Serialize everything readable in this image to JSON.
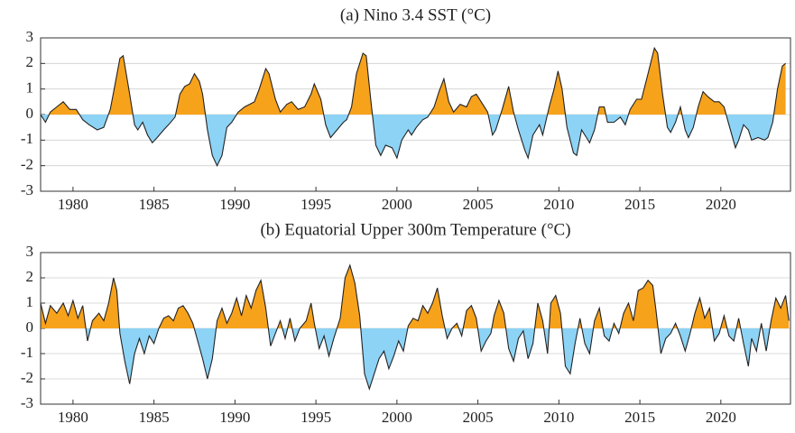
{
  "chart_data": [
    {
      "type": "area",
      "title": "(a) Nino 3.4 SST (°C)",
      "x": [
        1978.0,
        1978.3,
        1978.6,
        1979.0,
        1979.4,
        1979.8,
        1980.2,
        1980.6,
        1981.0,
        1981.5,
        1981.9,
        1982.3,
        1982.6,
        1982.9,
        1983.1,
        1983.5,
        1983.8,
        1984.0,
        1984.3,
        1984.6,
        1984.9,
        1985.2,
        1985.6,
        1985.9,
        1986.3,
        1986.6,
        1986.9,
        1987.2,
        1987.5,
        1987.8,
        1988.0,
        1988.3,
        1988.6,
        1988.9,
        1989.2,
        1989.5,
        1989.8,
        1990.2,
        1990.6,
        1990.9,
        1991.2,
        1991.5,
        1991.9,
        1992.1,
        1992.5,
        1992.8,
        1993.2,
        1993.5,
        1993.9,
        1994.3,
        1994.7,
        1994.9,
        1995.3,
        1995.6,
        1995.9,
        1996.3,
        1996.7,
        1996.9,
        1997.2,
        1997.5,
        1997.9,
        1998.1,
        1998.4,
        1998.7,
        1999.0,
        1999.3,
        1999.7,
        2000.0,
        2000.3,
        2000.7,
        2000.9,
        2001.2,
        2001.6,
        2001.9,
        2002.3,
        2002.6,
        2002.9,
        2003.2,
        2003.5,
        2003.9,
        2004.3,
        2004.6,
        2004.9,
        2005.2,
        2005.6,
        2005.9,
        2006.1,
        2006.5,
        2006.9,
        2007.2,
        2007.5,
        2007.9,
        2008.1,
        2008.4,
        2008.8,
        2009.0,
        2009.4,
        2009.7,
        2009.95,
        2010.2,
        2010.5,
        2010.9,
        2011.1,
        2011.4,
        2011.7,
        2011.9,
        2012.2,
        2012.5,
        2012.8,
        2013.0,
        2013.4,
        2013.8,
        2014.1,
        2014.4,
        2014.8,
        2015.1,
        2015.5,
        2015.9,
        2016.1,
        2016.4,
        2016.7,
        2016.9,
        2017.2,
        2017.5,
        2017.8,
        2018.0,
        2018.3,
        2018.6,
        2018.9,
        2019.2,
        2019.6,
        2019.9,
        2020.2,
        2020.5,
        2020.9,
        2021.1,
        2021.4,
        2021.7,
        2021.9,
        2022.3,
        2022.7,
        2022.9,
        2023.2,
        2023.5,
        2023.8,
        2024.0
      ],
      "values": [
        0,
        -0.3,
        0.1,
        0.3,
        0.5,
        0.2,
        0.2,
        -0.2,
        -0.4,
        -0.6,
        -0.5,
        0.2,
        1.2,
        2.2,
        2.3,
        0.8,
        -0.4,
        -0.6,
        -0.3,
        -0.8,
        -1.1,
        -0.9,
        -0.6,
        -0.4,
        -0.1,
        0.8,
        1.1,
        1.2,
        1.6,
        1.3,
        0.8,
        -0.6,
        -1.6,
        -2.0,
        -1.6,
        -0.5,
        -0.3,
        0.1,
        0.3,
        0.4,
        0.5,
        1.0,
        1.8,
        1.6,
        0.6,
        0.1,
        0.4,
        0.5,
        0.2,
        0.3,
        0.8,
        1.2,
        0.6,
        -0.4,
        -0.9,
        -0.6,
        -0.3,
        -0.2,
        0.3,
        1.6,
        2.4,
        2.3,
        0.5,
        -1.2,
        -1.6,
        -1.2,
        -1.3,
        -1.7,
        -1.0,
        -0.6,
        -0.8,
        -0.5,
        -0.2,
        -0.1,
        0.3,
        0.9,
        1.4,
        0.5,
        0.1,
        0.4,
        0.3,
        0.7,
        0.8,
        0.5,
        0.1,
        -0.8,
        -0.6,
        0.2,
        1.1,
        0.1,
        -0.6,
        -1.4,
        -1.7,
        -0.8,
        -0.4,
        -0.8,
        0.3,
        1.0,
        1.7,
        1.0,
        -0.5,
        -1.5,
        -1.6,
        -0.6,
        -0.9,
        -1.1,
        -0.6,
        0.3,
        0.3,
        -0.3,
        -0.3,
        -0.1,
        -0.4,
        0.2,
        0.6,
        0.6,
        1.6,
        2.6,
        2.4,
        0.8,
        -0.5,
        -0.7,
        -0.3,
        0.3,
        -0.6,
        -0.9,
        -0.5,
        0.3,
        0.9,
        0.7,
        0.5,
        0.5,
        0.3,
        -0.4,
        -1.3,
        -1.0,
        -0.4,
        -0.6,
        -1.0,
        -0.9,
        -1.0,
        -0.9,
        -0.3,
        1.0,
        1.9,
        2.0
      ],
      "xlim": [
        1978,
        2024.3
      ],
      "ylim": [
        -3,
        3
      ],
      "xticks": [
        1980,
        1985,
        1990,
        1995,
        2000,
        2005,
        2010,
        2015,
        2020
      ],
      "yticks": [
        -3,
        -2,
        -1,
        0,
        1,
        2,
        3
      ],
      "positive_color": "#f7a21b",
      "negative_color": "#8dd3f5",
      "line_color": "#222222",
      "grid": true
    },
    {
      "type": "area",
      "title": "(b) Equatorial Upper 300m Temperature (°C)",
      "x": [
        1978.0,
        1978.3,
        1978.6,
        1979.0,
        1979.4,
        1979.7,
        1980.0,
        1980.3,
        1980.6,
        1980.9,
        1981.2,
        1981.6,
        1981.9,
        1982.2,
        1982.5,
        1982.7,
        1982.9,
        1983.2,
        1983.5,
        1983.8,
        1984.1,
        1984.4,
        1984.7,
        1985.0,
        1985.3,
        1985.6,
        1985.9,
        1986.2,
        1986.5,
        1986.8,
        1987.1,
        1987.4,
        1987.7,
        1988.0,
        1988.3,
        1988.6,
        1988.9,
        1989.2,
        1989.5,
        1989.8,
        1990.1,
        1990.4,
        1990.7,
        1991.0,
        1991.3,
        1991.6,
        1991.9,
        1992.2,
        1992.5,
        1992.8,
        1993.1,
        1993.4,
        1993.7,
        1994.0,
        1994.4,
        1994.7,
        1994.9,
        1995.2,
        1995.5,
        1995.8,
        1996.1,
        1996.5,
        1996.8,
        1997.1,
        1997.4,
        1997.7,
        1998.0,
        1998.3,
        1998.6,
        1998.9,
        1999.2,
        1999.5,
        1999.8,
        2000.1,
        2000.4,
        2000.7,
        2001.0,
        2001.3,
        2001.6,
        2001.9,
        2002.2,
        2002.5,
        2002.8,
        2003.1,
        2003.4,
        2003.7,
        2004.0,
        2004.3,
        2004.6,
        2004.9,
        2005.2,
        2005.5,
        2005.8,
        2006.0,
        2006.3,
        2006.6,
        2006.9,
        2007.2,
        2007.5,
        2007.8,
        2008.1,
        2008.4,
        2008.7,
        2009.0,
        2009.3,
        2009.5,
        2009.8,
        2010.1,
        2010.4,
        2010.7,
        2011.0,
        2011.3,
        2011.6,
        2011.9,
        2012.2,
        2012.5,
        2012.8,
        2013.1,
        2013.4,
        2013.7,
        2014.0,
        2014.3,
        2014.6,
        2014.9,
        2015.2,
        2015.5,
        2015.8,
        2016.0,
        2016.3,
        2016.6,
        2016.9,
        2017.2,
        2017.5,
        2017.8,
        2018.1,
        2018.4,
        2018.7,
        2019.0,
        2019.3,
        2019.6,
        2019.9,
        2020.2,
        2020.5,
        2020.8,
        2021.1,
        2021.4,
        2021.7,
        2021.9,
        2022.2,
        2022.5,
        2022.8,
        2023.1,
        2023.4,
        2023.7,
        2024.0,
        2024.2
      ],
      "values": [
        1.0,
        0.2,
        0.9,
        0.6,
        1.0,
        0.5,
        1.1,
        0.4,
        0.9,
        -0.5,
        0.3,
        0.6,
        0.3,
        1.0,
        2.0,
        1.5,
        -0.2,
        -1.3,
        -2.2,
        -1.0,
        -0.4,
        -1.0,
        -0.3,
        -0.6,
        0.0,
        0.4,
        0.5,
        0.3,
        0.8,
        0.9,
        0.6,
        0.2,
        -0.5,
        -1.2,
        -2.0,
        -1.2,
        0.3,
        0.8,
        0.2,
        0.6,
        1.2,
        0.5,
        1.3,
        0.8,
        1.5,
        1.9,
        0.8,
        -0.7,
        -0.2,
        0.3,
        -0.4,
        0.4,
        -0.5,
        0.0,
        0.3,
        1.0,
        0.2,
        -0.8,
        -0.3,
        -1.1,
        -0.4,
        0.4,
        2.0,
        2.5,
        1.8,
        0.5,
        -1.8,
        -2.4,
        -1.8,
        -1.2,
        -0.9,
        -1.6,
        -1.1,
        -0.5,
        -0.9,
        0.1,
        0.4,
        0.3,
        0.9,
        0.6,
        1.0,
        1.6,
        0.5,
        -0.4,
        0.0,
        0.2,
        -0.3,
        0.7,
        0.9,
        0.4,
        -0.9,
        -0.5,
        -0.2,
        0.5,
        1.1,
        0.6,
        -0.8,
        -1.3,
        -0.4,
        -0.1,
        -1.2,
        -0.6,
        1.0,
        0.3,
        -1.0,
        1.0,
        1.3,
        0.6,
        -1.5,
        -1.8,
        -0.6,
        0.4,
        -0.6,
        -1.0,
        0.3,
        0.8,
        -0.3,
        -0.5,
        0.2,
        -0.2,
        0.6,
        1.0,
        0.3,
        1.5,
        1.6,
        1.9,
        1.7,
        0.7,
        -1.0,
        -0.4,
        -0.2,
        0.2,
        -0.3,
        -0.9,
        -0.2,
        0.6,
        1.2,
        0.4,
        0.8,
        -0.5,
        -0.2,
        0.5,
        -0.3,
        -0.5,
        0.4,
        -0.6,
        -1.5,
        -0.4,
        -0.9,
        0.2,
        -0.9,
        0.3,
        1.2,
        0.8,
        1.3,
        0.3
      ],
      "xlim": [
        1978,
        2024.3
      ],
      "ylim": [
        -3,
        3
      ],
      "xticks": [
        1980,
        1985,
        1990,
        1995,
        2000,
        2005,
        2010,
        2015,
        2020
      ],
      "yticks": [
        -3,
        -2,
        -1,
        0,
        1,
        2,
        3
      ],
      "positive_color": "#f7a21b",
      "negative_color": "#8dd3f5",
      "line_color": "#222222",
      "grid": true
    }
  ]
}
